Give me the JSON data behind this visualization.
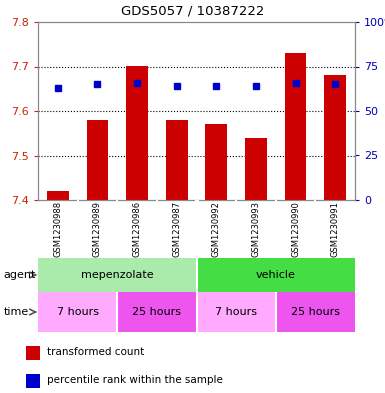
{
  "title": "GDS5057 / 10387222",
  "samples": [
    "GSM1230988",
    "GSM1230989",
    "GSM1230986",
    "GSM1230987",
    "GSM1230992",
    "GSM1230993",
    "GSM1230990",
    "GSM1230991"
  ],
  "transformed_counts": [
    7.42,
    7.58,
    7.7,
    7.58,
    7.57,
    7.54,
    7.73,
    7.68
  ],
  "percentile_ranks": [
    63,
    65,
    66,
    64,
    64,
    64,
    66,
    65
  ],
  "ylim_left": [
    7.4,
    7.8
  ],
  "ylim_right": [
    0,
    100
  ],
  "yticks_left": [
    7.4,
    7.5,
    7.6,
    7.7,
    7.8
  ],
  "yticks_right": [
    0,
    25,
    50,
    75,
    100
  ],
  "bar_color": "#cc0000",
  "dot_color": "#0000cc",
  "bar_bottom": 7.4,
  "agent_color_mep": "#aaeaaa",
  "agent_color_veh": "#44dd44",
  "time_color_7": "#ffaaff",
  "time_color_25": "#ee55ee",
  "sample_bg": "#cccccc",
  "plot_bg": "#ffffff",
  "left_label_color": "#cc2200",
  "right_label_color": "#0000bb",
  "title_color": "#000000",
  "legend_bar_color": "#cc0000",
  "legend_dot_color": "#0000cc"
}
